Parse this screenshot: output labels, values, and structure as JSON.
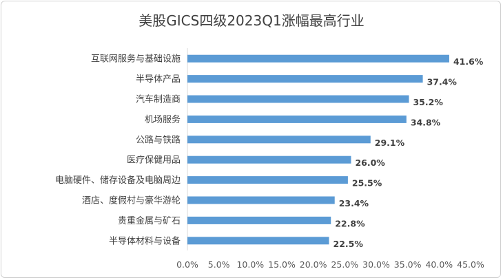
{
  "chart_data": {
    "type": "bar",
    "orientation": "horizontal",
    "title": "美股GICS四级2023Q1涨幅最高行业",
    "categories": [
      "互联网服务与基础设施",
      "半导体产品",
      "汽车制造商",
      "机场服务",
      "公路与铁路",
      "医疗保健用品",
      "电脑硬件、储存设备及电脑周边",
      "酒店、度假村与豪华游轮",
      "贵重金属与矿石",
      "半导体材料与设备"
    ],
    "values": [
      41.6,
      37.4,
      35.2,
      34.8,
      29.1,
      26.0,
      25.5,
      23.4,
      22.8,
      22.5
    ],
    "value_labels": [
      "41.6%",
      "37.4%",
      "35.2%",
      "34.8%",
      "29.1%",
      "26.0%",
      "25.5%",
      "23.4%",
      "22.8%",
      "22.5%"
    ],
    "xlim": [
      0,
      45
    ],
    "x_ticks": [
      0,
      5,
      10,
      15,
      20,
      25,
      30,
      35,
      40,
      45
    ],
    "x_tick_labels": [
      "0.0%",
      "5.0%",
      "10.0%",
      "15.0%",
      "20.0%",
      "25.0%",
      "30.0%",
      "35.0%",
      "40.0%",
      "45.0%"
    ],
    "bar_color": "#5b9bd5",
    "grid": false,
    "legend": "none"
  }
}
